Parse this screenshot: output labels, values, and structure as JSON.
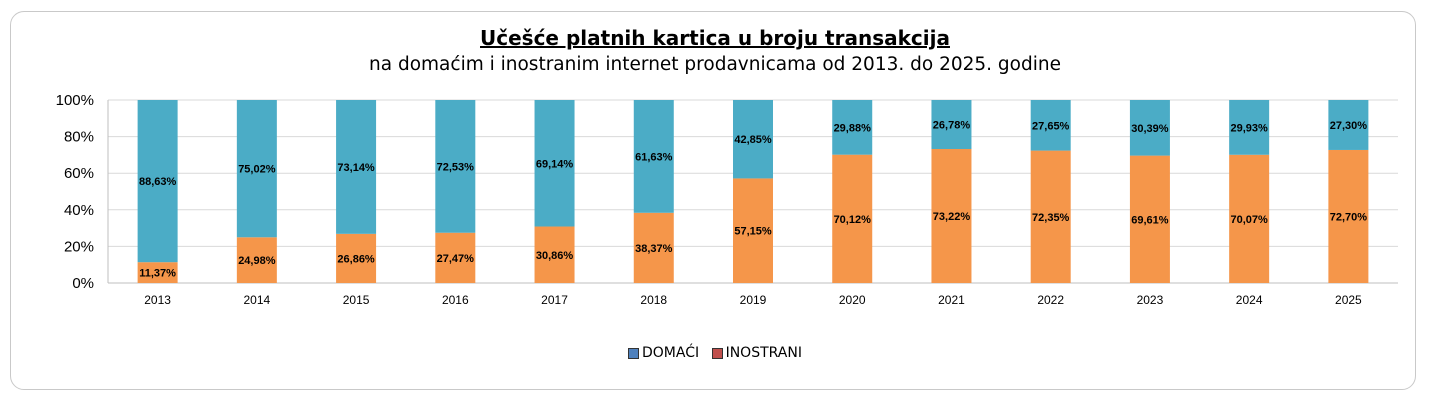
{
  "chart_data": {
    "type": "bar",
    "stacked": true,
    "title": "Učešće platnih kartica u broju transakcija",
    "subtitle": "na domaćim i inostranim internet prodavnicama od 2013. do 2025. godine",
    "categories": [
      "2013",
      "2014",
      "2015",
      "2016",
      "2017",
      "2018",
      "2019",
      "2020",
      "2021",
      "2022",
      "2023",
      "2024",
      "2025"
    ],
    "series": [
      {
        "name": "INOSTRANI",
        "color": "#F5964A",
        "legend_color": "#C0504D",
        "values": [
          11.37,
          24.98,
          26.86,
          27.47,
          30.86,
          38.37,
          57.15,
          70.12,
          73.22,
          72.35,
          69.61,
          70.07,
          72.7
        ],
        "labels": [
          "11,37%",
          "24,98%",
          "26,86%",
          "27,47%",
          "30,86%",
          "38,37%",
          "57,15%",
          "70,12%",
          "73,22%",
          "72,35%",
          "69,61%",
          "70,07%",
          "72,70%"
        ]
      },
      {
        "name": "DOMAĆI",
        "color": "#4BACC6",
        "legend_color": "#4F81BD",
        "values": [
          88.63,
          75.02,
          73.14,
          72.53,
          69.14,
          61.63,
          42.85,
          29.88,
          26.78,
          27.65,
          30.39,
          29.93,
          27.3
        ],
        "labels": [
          "88,63%",
          "75,02%",
          "73,14%",
          "72,53%",
          "69,14%",
          "61,63%",
          "42,85%",
          "29,88%",
          "26,78%",
          "27,65%",
          "30,39%",
          "29,93%",
          "27,30%"
        ]
      }
    ],
    "y_ticks": [
      "0%",
      "20%",
      "40%",
      "60%",
      "80%",
      "100%"
    ],
    "ylim": [
      0,
      100
    ],
    "grid": true,
    "legend_position": "bottom"
  },
  "legend": {
    "items": [
      {
        "label": "DOMAĆI",
        "color": "#4F81BD"
      },
      {
        "label": "INOSTRANI",
        "color": "#C0504D"
      }
    ]
  }
}
